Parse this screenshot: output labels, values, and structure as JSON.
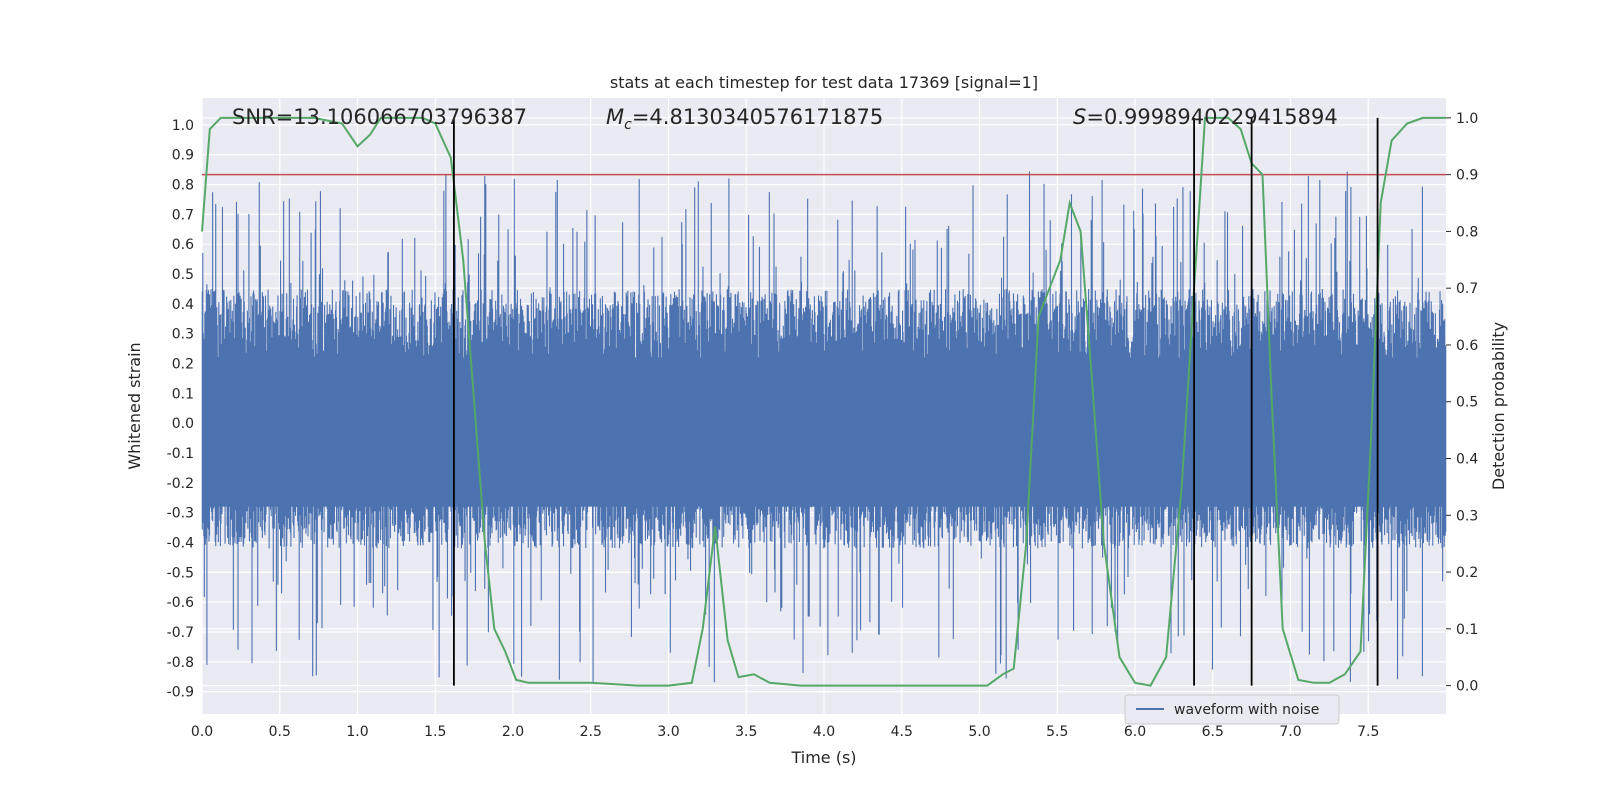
{
  "chart_data": {
    "type": "line",
    "title": "stats at each timestep for test data 17369 [signal=1]",
    "xlabel": "Time (s)",
    "ylabel_left": "Whitened strain",
    "ylabel_right": "Detection probability",
    "xlim": [
      0.0,
      8.0
    ],
    "ylim_left": [
      -0.975,
      1.09
    ],
    "ylim_right": [
      -0.05,
      1.035
    ],
    "x_ticks": [
      "0.0",
      "0.5",
      "1.0",
      "1.5",
      "2.0",
      "2.5",
      "3.0",
      "3.5",
      "4.0",
      "4.5",
      "5.0",
      "5.5",
      "6.0",
      "6.5",
      "7.0",
      "7.5"
    ],
    "y_left_ticks": [
      "1.0",
      "0.9",
      "0.8",
      "0.7",
      "0.6",
      "0.5",
      "0.4",
      "0.3",
      "0.2",
      "0.1",
      "0.0",
      "-0.1",
      "-0.2",
      "-0.3",
      "-0.4",
      "-0.5",
      "-0.6",
      "-0.7",
      "-0.8",
      "-0.9"
    ],
    "y_right_ticks": [
      "1.0",
      "0.9",
      "0.8",
      "0.7",
      "0.6",
      "0.5",
      "0.4",
      "0.3",
      "0.2",
      "0.1",
      "0.0"
    ],
    "annotations": {
      "snr": "SNR=13.106066703796387",
      "mc_symbol": "M",
      "mc_sub": "c",
      "mc_value": "=4.8130340576171875",
      "s_symbol": "S",
      "s_value": "=0.9998940229415894"
    },
    "threshold_right": 0.9,
    "vertical_lines_x": [
      1.62,
      6.38,
      6.75,
      7.56
    ],
    "legend": {
      "label": "waveform with noise",
      "placement": "lower-right"
    },
    "grid": true,
    "series": [
      {
        "name": "waveform with noise",
        "axis": "left",
        "kind": "noise-waveform",
        "typical_envelope": [
          -0.4,
          0.45
        ],
        "spike_count": 320,
        "seed": 17369
      },
      {
        "axis": "right",
        "kind": "probability",
        "points": [
          [
            0.0,
            0.8
          ],
          [
            0.05,
            0.98
          ],
          [
            0.12,
            1.0
          ],
          [
            0.4,
            1.0
          ],
          [
            0.72,
            1.0
          ],
          [
            0.9,
            0.99
          ],
          [
            1.0,
            0.95
          ],
          [
            1.08,
            0.97
          ],
          [
            1.15,
            1.0
          ],
          [
            1.3,
            1.0
          ],
          [
            1.42,
            1.0
          ],
          [
            1.5,
            0.99
          ],
          [
            1.6,
            0.93
          ],
          [
            1.68,
            0.75
          ],
          [
            1.75,
            0.5
          ],
          [
            1.82,
            0.25
          ],
          [
            1.88,
            0.1
          ],
          [
            1.95,
            0.06
          ],
          [
            2.02,
            0.01
          ],
          [
            2.1,
            0.005
          ],
          [
            2.3,
            0.005
          ],
          [
            2.5,
            0.005
          ],
          [
            2.8,
            0.0
          ],
          [
            3.0,
            0.0
          ],
          [
            3.15,
            0.005
          ],
          [
            3.22,
            0.1
          ],
          [
            3.3,
            0.28
          ],
          [
            3.38,
            0.08
          ],
          [
            3.45,
            0.015
          ],
          [
            3.55,
            0.02
          ],
          [
            3.65,
            0.005
          ],
          [
            3.85,
            0.0
          ],
          [
            4.5,
            0.0
          ],
          [
            5.05,
            0.0
          ],
          [
            5.15,
            0.02
          ],
          [
            5.22,
            0.03
          ],
          [
            5.3,
            0.25
          ],
          [
            5.38,
            0.65
          ],
          [
            5.45,
            0.7
          ],
          [
            5.52,
            0.75
          ],
          [
            5.58,
            0.85
          ],
          [
            5.65,
            0.8
          ],
          [
            5.72,
            0.55
          ],
          [
            5.8,
            0.25
          ],
          [
            5.9,
            0.05
          ],
          [
            6.0,
            0.005
          ],
          [
            6.1,
            0.0
          ],
          [
            6.2,
            0.05
          ],
          [
            6.3,
            0.35
          ],
          [
            6.38,
            0.7
          ],
          [
            6.45,
            1.0
          ],
          [
            6.52,
            1.0
          ],
          [
            6.6,
            1.0
          ],
          [
            6.68,
            0.98
          ],
          [
            6.75,
            0.92
          ],
          [
            6.82,
            0.9
          ],
          [
            6.88,
            0.5
          ],
          [
            6.95,
            0.1
          ],
          [
            7.05,
            0.01
          ],
          [
            7.15,
            0.005
          ],
          [
            7.25,
            0.005
          ],
          [
            7.35,
            0.02
          ],
          [
            7.45,
            0.06
          ],
          [
            7.52,
            0.45
          ],
          [
            7.58,
            0.85
          ],
          [
            7.65,
            0.96
          ],
          [
            7.75,
            0.99
          ],
          [
            7.85,
            1.0
          ],
          [
            8.0,
            1.0
          ]
        ]
      }
    ]
  }
}
